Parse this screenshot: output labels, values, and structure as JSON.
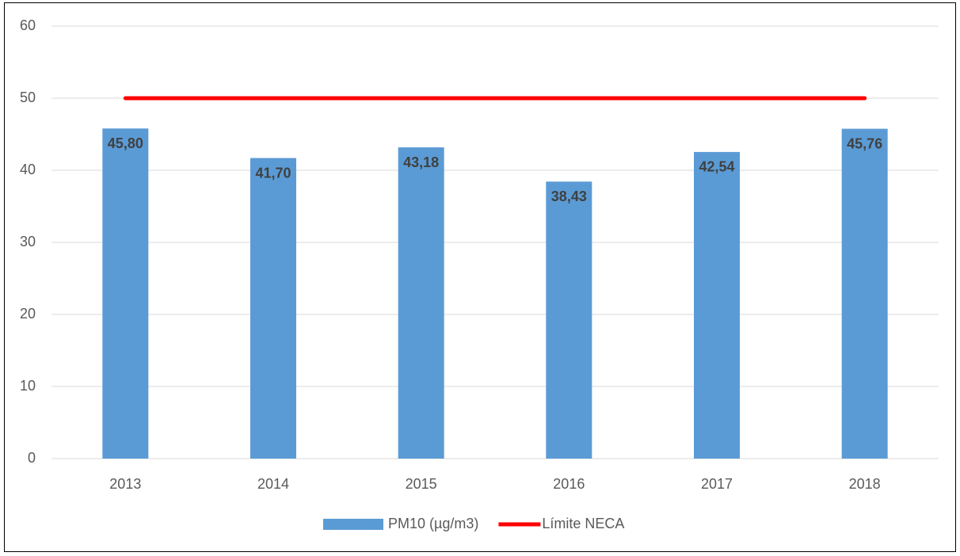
{
  "chart_data": {
    "type": "bar",
    "categories": [
      "2013",
      "2014",
      "2015",
      "2016",
      "2017",
      "2018"
    ],
    "series": [
      {
        "name": "PM10 (µg/m3)",
        "type": "bar",
        "color": "#5b9bd5",
        "values": [
          45.8,
          41.7,
          43.18,
          38.43,
          42.54,
          45.76
        ],
        "value_labels": [
          "45,80",
          "41,70",
          "43,18",
          "38,43",
          "42,54",
          "45,76"
        ]
      },
      {
        "name": "Límite NECA",
        "type": "line",
        "color": "#ff0000",
        "values": [
          50,
          50,
          50,
          50,
          50,
          50
        ]
      }
    ],
    "ylim": [
      0,
      60
    ],
    "yticks": [
      0,
      10,
      20,
      30,
      40,
      50,
      60
    ],
    "grid": true,
    "legend": "bottom"
  }
}
